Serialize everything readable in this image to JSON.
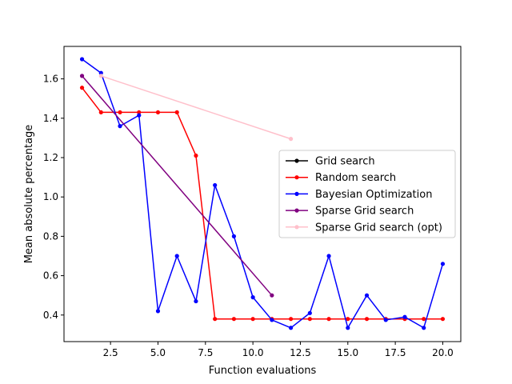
{
  "chart_data": {
    "type": "line",
    "title": "",
    "xlabel": "Function evaluations",
    "ylabel": "Mean absolute percentage",
    "xlim": [
      0.05,
      20.95
    ],
    "ylim": [
      0.265,
      1.765
    ],
    "xticks": [
      2.5,
      5.0,
      7.5,
      10.0,
      12.5,
      15.0,
      17.5,
      20.0
    ],
    "xtick_labels": [
      "2.5",
      "5.0",
      "7.5",
      "10.0",
      "12.5",
      "15.0",
      "17.5",
      "20.0"
    ],
    "yticks": [
      0.4,
      0.6,
      0.8,
      1.0,
      1.2,
      1.4,
      1.6
    ],
    "ytick_labels": [
      "0.4",
      "0.6",
      "0.8",
      "1.0",
      "1.2",
      "1.4",
      "1.6"
    ],
    "grid": false,
    "legend_position": "center-right",
    "series": [
      {
        "name": "Grid search",
        "color": "#000000",
        "x": [],
        "y": []
      },
      {
        "name": "Random search",
        "color": "#ff0000",
        "x": [
          1,
          2,
          3,
          4,
          5,
          6,
          7,
          8,
          9,
          10,
          11,
          12,
          13,
          14,
          15,
          16,
          17,
          18,
          19,
          20
        ],
        "y": [
          1.555,
          1.43,
          1.43,
          1.43,
          1.43,
          1.43,
          1.21,
          0.38,
          0.38,
          0.38,
          0.38,
          0.38,
          0.38,
          0.38,
          0.38,
          0.38,
          0.38,
          0.38,
          0.38,
          0.38
        ]
      },
      {
        "name": "Bayesian Optimization",
        "color": "#0000ff",
        "x": [
          1,
          2,
          3,
          4,
          5,
          6,
          7,
          8,
          9,
          10,
          11,
          12,
          13,
          14,
          15,
          16,
          17,
          18,
          19,
          20
        ],
        "y": [
          1.7,
          1.63,
          1.36,
          1.415,
          0.42,
          0.7,
          0.47,
          1.06,
          0.8,
          0.49,
          0.375,
          0.335,
          0.41,
          0.7,
          0.335,
          0.5,
          0.375,
          0.39,
          0.335,
          0.66
        ]
      },
      {
        "name": "Sparse Grid search",
        "color": "#800080",
        "x": [
          1,
          11
        ],
        "y": [
          1.615,
          0.5
        ]
      },
      {
        "name": "Sparse Grid search (opt)",
        "color": "#ffc0cb",
        "x": [
          2,
          12
        ],
        "y": [
          1.615,
          1.295
        ]
      }
    ]
  }
}
